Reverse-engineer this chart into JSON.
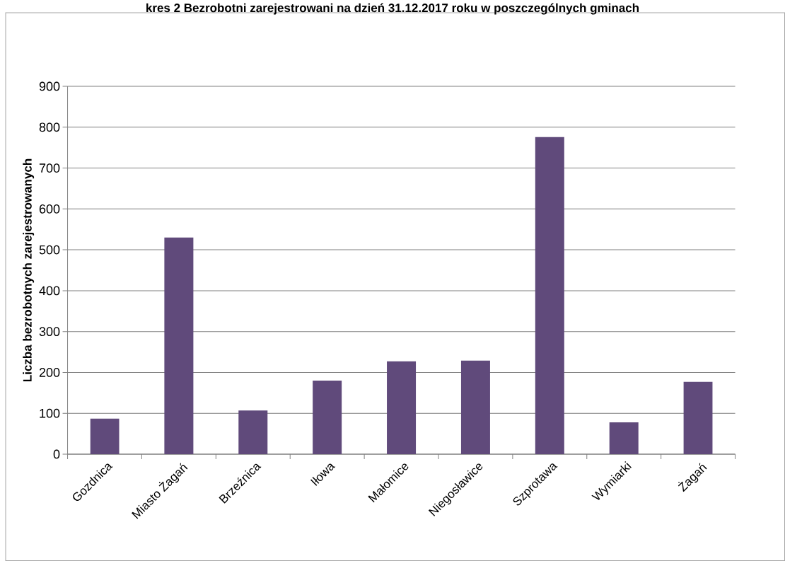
{
  "chart_data": {
    "type": "bar",
    "title": "kres 2 Bezrobotni zarejestrowani na dzień 31.12.2017 roku w poszczególnych gminach",
    "ylabel": "Liczba bezrobotnych zarejestrowanych",
    "categories": [
      "Gozdnica",
      "Miasto Żagań",
      "Brzeźnica",
      "Iłowa",
      "Małomice",
      "Niegosławice",
      "Szprotawa",
      "Wymiarki",
      "Żagań"
    ],
    "values": [
      87,
      530,
      107,
      180,
      227,
      229,
      776,
      78,
      177
    ],
    "color": "#604a7b",
    "ylim": [
      0,
      900
    ],
    "yticks": [
      0,
      100,
      200,
      300,
      400,
      500,
      600,
      700,
      800,
      900
    ],
    "grid": "y"
  }
}
